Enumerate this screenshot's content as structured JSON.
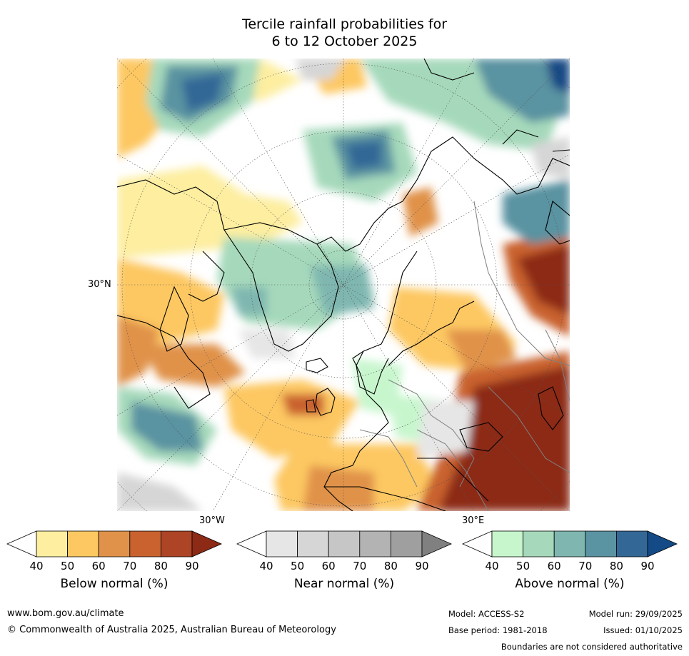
{
  "title_line1": "Tercile rainfall probabilities for",
  "title_line2": "6 to 12 October 2025",
  "map_labels": {
    "lat_30n": "30°N",
    "lon_30w": "30°W",
    "lon_30e": "30°E"
  },
  "colorbars": [
    {
      "label": "Below normal (%)",
      "ticks": [
        "40",
        "50",
        "60",
        "70",
        "80",
        "90"
      ],
      "colors": [
        "#fdeea0",
        "#fdc862",
        "#e0924a",
        "#c9622e",
        "#ad4425",
        "#8c2a15"
      ]
    },
    {
      "label": "Near normal (%)",
      "ticks": [
        "40",
        "50",
        "60",
        "70",
        "80",
        "90"
      ],
      "colors": [
        "#e6e6e6",
        "#d6d6d6",
        "#c6c6c6",
        "#b3b3b3",
        "#9f9f9f",
        "#808080"
      ]
    },
    {
      "label": "Above normal (%)",
      "ticks": [
        "40",
        "50",
        "60",
        "70",
        "80",
        "90"
      ],
      "colors": [
        "#c7f6cd",
        "#a6d9bb",
        "#7fb7b0",
        "#5a93a1",
        "#336896",
        "#144a85"
      ]
    }
  ],
  "footer": {
    "website": "www.bom.gov.au/climate",
    "copyright": "© Commonwealth of Australia 2025, Australian Bureau of Meteorology",
    "model": "Model: ACCESS-S2",
    "base_period": "Base period: 1981-2018",
    "model_run": "Model run: 29/09/2025",
    "issued": "Issued: 01/10/2025",
    "disclaimer": "Boundaries are not considered authoritative"
  },
  "map_colors": {
    "background": "#ffffff",
    "coast": "#000000",
    "borders": "#808080",
    "graticule": "#555555"
  }
}
